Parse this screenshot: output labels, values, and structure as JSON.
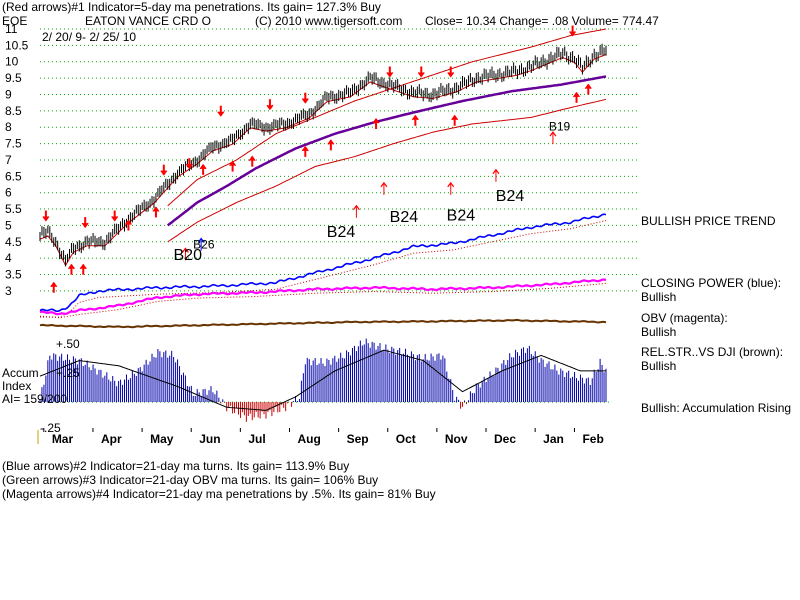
{
  "header": {
    "line1": "(Red arrows)#1 Indicator=5-day ma penetrations. Its gain= 127.3% Buy",
    "symbol": "EOE",
    "name": "EATON VANCE CRD O",
    "copyright": "(C) 2010 www.tigersoft.com",
    "quote": "Close=  10.34  Change= .08 Volume= 774.47",
    "date_range": "2/ 20/ 9- 2/ 25/ 10"
  },
  "footer": {
    "line1": "(Blue arrows)#2 Indicator=21-day ma turns. Its gain= 113.9% Buy",
    "line2": "(Green arrows)#3 Indicator=21-day OBV ma turns. Its gain= 106% Buy",
    "line3": "(Magenta arrows)#4 Indicator=21-day ma penetrations by .5%. Its gain= 81% Buy"
  },
  "side_labels": {
    "trend": "BULLISH PRICE TREND",
    "cp_label": "CLOSING POWER (blue):",
    "cp_value": "Bullish",
    "obv_label": "OBV (magenta):",
    "obv_value": "Bullish",
    "rs_label": "REL.STR..VS DJI (brown):",
    "rs_value": "Bullish",
    "accum_note": "Bullish: Accumulation Rising"
  },
  "accum_labels": {
    "title1": "Accum",
    "title2": "Index",
    "ai": "AI= 159/200",
    "plus50": "+.50",
    "plus25": "+.25",
    "minus25": "-.25"
  },
  "colors": {
    "price": "#000000",
    "band": "#cc0000",
    "ma": "#660099",
    "closing_power": "#0000ff",
    "obv": "#ff00ff",
    "relstr": "#663300",
    "accum_pos": "#0000aa",
    "accum_neg": "#cc0000",
    "grid": "#00aa00",
    "signal_red": "#ff0000",
    "signal_blue": "#0000ff"
  },
  "chart_data": {
    "type": "line",
    "title": "EATON VANCE CRD O",
    "ylim": [
      2.6,
      11.0
    ],
    "y_ticks": [
      "11",
      "10.5",
      "10",
      "9.5",
      "9",
      "8.5",
      "8",
      "7.5",
      "7",
      "6.5",
      "6",
      "5.5",
      "5",
      "4.5",
      "4",
      "3.5",
      "3"
    ],
    "y_tick_values": [
      11,
      10.5,
      10,
      9.5,
      9,
      8.5,
      8,
      7.5,
      7,
      6.5,
      6,
      5.5,
      5,
      4.5,
      4,
      3.5,
      3
    ],
    "months": [
      "Mar",
      "Apr",
      "May",
      "Jun",
      "Jul",
      "Aug",
      "Sep",
      "Oct",
      "Nov",
      "Dec",
      "Jan",
      "Feb"
    ],
    "month_index": [
      5,
      30,
      55,
      80,
      105,
      130,
      155,
      180,
      205,
      230,
      255,
      275
    ],
    "n_points": 289,
    "price_anchors": [
      [
        0,
        4.7
      ],
      [
        4,
        4.8
      ],
      [
        8,
        4.5
      ],
      [
        13,
        3.9
      ],
      [
        17,
        4.3
      ],
      [
        24,
        4.5
      ],
      [
        33,
        4.5
      ],
      [
        45,
        5.2
      ],
      [
        58,
        5.8
      ],
      [
        70,
        6.6
      ],
      [
        80,
        7.0
      ],
      [
        88,
        7.4
      ],
      [
        98,
        7.6
      ],
      [
        107,
        8.1
      ],
      [
        115,
        8.0
      ],
      [
        125,
        8.1
      ],
      [
        137,
        8.4
      ],
      [
        146,
        8.9
      ],
      [
        158,
        9.05
      ],
      [
        168,
        9.5
      ],
      [
        180,
        9.25
      ],
      [
        190,
        9.05
      ],
      [
        200,
        9.0
      ],
      [
        212,
        9.2
      ],
      [
        222,
        9.5
      ],
      [
        232,
        9.6
      ],
      [
        242,
        9.7
      ],
      [
        250,
        9.85
      ],
      [
        258,
        10.05
      ],
      [
        266,
        10.25
      ],
      [
        272,
        10.1
      ],
      [
        276,
        9.8
      ],
      [
        282,
        10.2
      ],
      [
        288,
        10.34
      ]
    ],
    "ma_anchors": [
      [
        65,
        5.0
      ],
      [
        80,
        5.7
      ],
      [
        95,
        6.2
      ],
      [
        110,
        6.75
      ],
      [
        130,
        7.35
      ],
      [
        150,
        7.8
      ],
      [
        170,
        8.15
      ],
      [
        190,
        8.45
      ],
      [
        215,
        8.8
      ],
      [
        240,
        9.1
      ],
      [
        265,
        9.3
      ],
      [
        288,
        9.55
      ]
    ],
    "upper_band_anchors": [
      [
        65,
        5.6
      ],
      [
        80,
        6.4
      ],
      [
        100,
        7.0
      ],
      [
        120,
        7.8
      ],
      [
        140,
        8.3
      ],
      [
        160,
        8.8
      ],
      [
        180,
        9.2
      ],
      [
        200,
        9.6
      ],
      [
        220,
        10.0
      ],
      [
        250,
        10.45
      ],
      [
        270,
        10.8
      ],
      [
        288,
        11.0
      ]
    ],
    "lower_band_anchors": [
      [
        65,
        4.5
      ],
      [
        80,
        5.1
      ],
      [
        100,
        5.7
      ],
      [
        120,
        6.2
      ],
      [
        140,
        6.8
      ],
      [
        160,
        7.1
      ],
      [
        180,
        7.5
      ],
      [
        200,
        7.85
      ],
      [
        220,
        8.1
      ],
      [
        250,
        8.3
      ],
      [
        270,
        8.6
      ],
      [
        288,
        8.85
      ]
    ],
    "closing_power_anchors": [
      [
        0,
        2.4
      ],
      [
        10,
        2.4
      ],
      [
        15,
        2.55
      ],
      [
        20,
        2.85
      ],
      [
        30,
        3.0
      ],
      [
        60,
        3.1
      ],
      [
        90,
        3.15
      ],
      [
        120,
        3.25
      ],
      [
        150,
        3.7
      ],
      [
        170,
        4.0
      ],
      [
        190,
        4.35
      ],
      [
        210,
        4.45
      ],
      [
        230,
        4.7
      ],
      [
        250,
        4.95
      ],
      [
        270,
        5.1
      ],
      [
        288,
        5.35
      ]
    ],
    "obv_anchors": [
      [
        0,
        2.35
      ],
      [
        10,
        2.3
      ],
      [
        20,
        2.4
      ],
      [
        40,
        2.55
      ],
      [
        60,
        2.8
      ],
      [
        80,
        2.9
      ],
      [
        110,
        2.95
      ],
      [
        140,
        3.05
      ],
      [
        170,
        3.1
      ],
      [
        200,
        3.05
      ],
      [
        230,
        3.1
      ],
      [
        260,
        3.2
      ],
      [
        288,
        3.35
      ]
    ],
    "relstr_anchors": [
      [
        0,
        1.95
      ],
      [
        40,
        1.9
      ],
      [
        80,
        1.95
      ],
      [
        120,
        2.0
      ],
      [
        160,
        2.05
      ],
      [
        200,
        2.07
      ],
      [
        240,
        2.1
      ],
      [
        288,
        2.05
      ]
    ],
    "accum_anchors": [
      [
        0,
        0.02
      ],
      [
        5,
        0.45
      ],
      [
        20,
        0.4
      ],
      [
        25,
        0.35
      ],
      [
        40,
        0.18
      ],
      [
        50,
        0.3
      ],
      [
        60,
        0.48
      ],
      [
        68,
        0.45
      ],
      [
        78,
        0.08
      ],
      [
        88,
        0.12
      ],
      [
        95,
        -0.05
      ],
      [
        105,
        -0.15
      ],
      [
        115,
        -0.12
      ],
      [
        125,
        -0.05
      ],
      [
        132,
        0.05
      ],
      [
        135,
        0.4
      ],
      [
        145,
        0.38
      ],
      [
        155,
        0.45
      ],
      [
        165,
        0.58
      ],
      [
        175,
        0.52
      ],
      [
        185,
        0.48
      ],
      [
        195,
        0.42
      ],
      [
        205,
        0.45
      ],
      [
        211,
        0.05
      ],
      [
        215,
        -0.05
      ],
      [
        222,
        0.15
      ],
      [
        232,
        0.3
      ],
      [
        240,
        0.45
      ],
      [
        248,
        0.52
      ],
      [
        255,
        0.4
      ],
      [
        264,
        0.3
      ],
      [
        272,
        0.25
      ],
      [
        280,
        0.2
      ],
      [
        285,
        0.38
      ],
      [
        288,
        0.3
      ]
    ],
    "accum_ma_anchors": [
      [
        0,
        0.25
      ],
      [
        20,
        0.4
      ],
      [
        40,
        0.35
      ],
      [
        70,
        0.15
      ],
      [
        95,
        -0.05
      ],
      [
        115,
        -0.08
      ],
      [
        130,
        0.05
      ],
      [
        150,
        0.3
      ],
      [
        175,
        0.5
      ],
      [
        195,
        0.4
      ],
      [
        215,
        0.1
      ],
      [
        235,
        0.3
      ],
      [
        255,
        0.45
      ],
      [
        275,
        0.3
      ],
      [
        288,
        0.3
      ]
    ],
    "accum_ylim": [
      -0.25,
      0.55
    ],
    "red_sell_arrows": [
      [
        3,
        5.15
      ],
      [
        23,
        4.95
      ],
      [
        38,
        5.15
      ],
      [
        63,
        6.55
      ],
      [
        76,
        6.75
      ],
      [
        92,
        8.35
      ],
      [
        117,
        8.55
      ],
      [
        135,
        8.75
      ],
      [
        178,
        9.55
      ],
      [
        194,
        9.55
      ],
      [
        209,
        9.55
      ],
      [
        271,
        10.8
      ]
    ],
    "red_buy_arrows": [
      [
        7,
        3.25
      ],
      [
        16,
        3.8
      ],
      [
        22,
        3.8
      ],
      [
        45,
        5.15
      ],
      [
        59,
        5.55
      ],
      [
        83,
        6.85
      ],
      [
        98,
        6.95
      ],
      [
        108,
        7.1
      ],
      [
        135,
        7.4
      ],
      [
        148,
        7.6
      ],
      [
        171,
        8.25
      ],
      [
        191,
        8.35
      ],
      [
        211,
        8.35
      ],
      [
        273,
        9.05
      ],
      [
        279,
        9.3
      ]
    ],
    "thin_up_arrows": [
      [
        74,
        4.3
      ],
      [
        161,
        5.6
      ],
      [
        175,
        6.3
      ],
      [
        209,
        6.3
      ],
      [
        232,
        6.7
      ],
      [
        261,
        7.85
      ]
    ],
    "blue_up_arrows": [
      [
        82,
        4.6
      ]
    ],
    "signal_labels": [
      {
        "text": "B20",
        "i": 72,
        "y": 3.95,
        "size": "big"
      },
      {
        "text": "B26",
        "i": 82,
        "y": 4.3,
        "size": "small"
      },
      {
        "text": "B24",
        "i": 150,
        "y": 4.65,
        "size": "big"
      },
      {
        "text": "B24",
        "i": 182,
        "y": 5.1,
        "size": "big"
      },
      {
        "text": "B24",
        "i": 211,
        "y": 5.15,
        "size": "big"
      },
      {
        "text": "B24",
        "i": 236,
        "y": 5.75,
        "size": "big"
      },
      {
        "text": "B19",
        "i": 263,
        "y": 7.9,
        "size": "small"
      }
    ]
  }
}
